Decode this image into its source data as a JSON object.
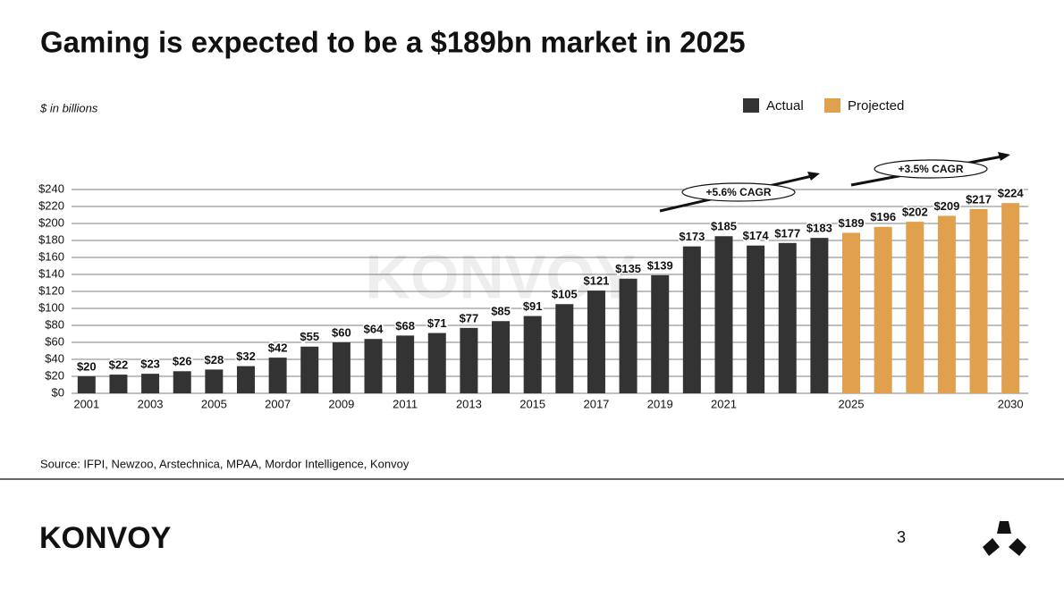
{
  "chart_data": {
    "type": "bar",
    "title": "Gaming is expected to be a $189bn market in 2025",
    "subtitle": "$ in billions",
    "categories": [
      "2001",
      null,
      "2003",
      null,
      "2005",
      null,
      "2007",
      null,
      "2009",
      null,
      "2011",
      null,
      "2013",
      null,
      "2015",
      null,
      "2017",
      null,
      "2019",
      null,
      "2021",
      null,
      null,
      null,
      "2025",
      null,
      null,
      null,
      null,
      "2030"
    ],
    "series": [
      {
        "name": "Actual",
        "color": "#333333",
        "values": [
          20,
          22,
          23,
          26,
          28,
          32,
          42,
          55,
          60,
          64,
          68,
          71,
          77,
          85,
          91,
          105,
          121,
          135,
          139,
          173,
          185,
          174,
          177,
          183,
          null,
          null,
          null,
          null,
          null,
          null
        ],
        "value_labels": [
          "$20",
          "$22",
          "$23",
          "$26",
          "$28",
          "$32",
          "$42",
          "$55",
          "$60",
          "$64",
          "$68",
          "$71",
          "$77",
          "$85",
          "$91",
          "$105",
          "$121",
          "$135",
          "$139",
          "$173",
          "$185",
          "$174",
          "$177",
          "$183",
          null,
          null,
          null,
          null,
          null,
          null
        ]
      },
      {
        "name": "Projected",
        "color": "#e0a04e",
        "values": [
          null,
          null,
          null,
          null,
          null,
          null,
          null,
          null,
          null,
          null,
          null,
          null,
          null,
          null,
          null,
          null,
          null,
          null,
          null,
          null,
          null,
          null,
          null,
          null,
          189,
          196,
          202,
          209,
          217,
          224
        ],
        "value_labels": [
          null,
          null,
          null,
          null,
          null,
          null,
          null,
          null,
          null,
          null,
          null,
          null,
          null,
          null,
          null,
          null,
          null,
          null,
          null,
          null,
          null,
          null,
          null,
          null,
          "$189",
          "$196",
          "$202",
          "$209",
          "$217",
          "$224"
        ]
      }
    ],
    "ylim": [
      0,
      240
    ],
    "yticks": [
      {
        "value": 0,
        "label": "$0"
      },
      {
        "value": 20,
        "label": "$20"
      },
      {
        "value": 40,
        "label": "$40"
      },
      {
        "value": 60,
        "label": "$60"
      },
      {
        "value": 80,
        "label": "$80"
      },
      {
        "value": 100,
        "label": "$100"
      },
      {
        "value": 120,
        "label": "$120"
      },
      {
        "value": 140,
        "label": "$140"
      },
      {
        "value": 160,
        "label": "$160"
      },
      {
        "value": 180,
        "label": "$180"
      },
      {
        "value": 200,
        "label": "$200"
      },
      {
        "value": 220,
        "label": "$220"
      },
      {
        "value": 240,
        "label": "$240"
      }
    ],
    "grid": true,
    "legend": "top-right",
    "annotations": [
      "+5.6% CAGR",
      "+3.5% CAGR"
    ]
  },
  "watermark": "KONVOY",
  "footer": {
    "source": "Source: IFPI, Newzoo, Arstechnica, MPAA, Mordor Intelligence, Konvoy",
    "brand": "KONVOY",
    "page": "3"
  }
}
